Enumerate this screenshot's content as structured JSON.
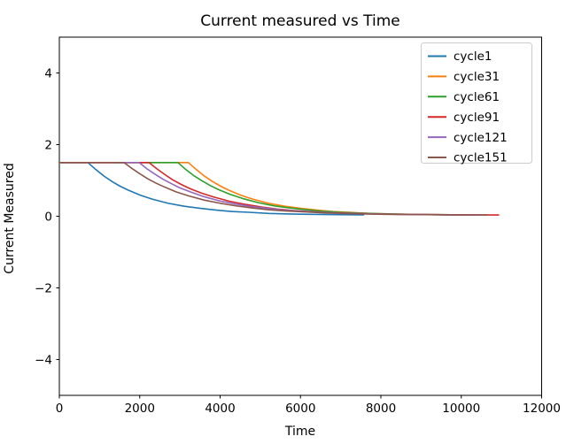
{
  "figure": {
    "background": "#ffffff"
  },
  "chart_data": {
    "type": "line",
    "title": "Current measured vs Time",
    "xlabel": "Time",
    "ylabel": "Current Measured",
    "xlim": [
      0,
      12000
    ],
    "ylim": [
      -5,
      5
    ],
    "x_ticks": [
      0,
      2000,
      4000,
      6000,
      8000,
      10000,
      12000
    ],
    "y_ticks": [
      -4,
      -2,
      0,
      2,
      4
    ],
    "grid": false,
    "plateau_value": 1.5,
    "axis_color": "#000000",
    "legend": {
      "position": "upper right",
      "border_color": "#cccccc",
      "background": "#ffffff",
      "entries": [
        "cycle1",
        "cycle31",
        "cycle61",
        "cycle91",
        "cycle121",
        "cycle151"
      ]
    },
    "series": [
      {
        "name": "cycle1",
        "color": "#1f77b4",
        "points": [
          [
            0,
            1.5
          ],
          [
            710,
            1.5
          ],
          [
            910,
            1.3
          ],
          [
            1110,
            1.12
          ],
          [
            1310,
            0.97
          ],
          [
            1510,
            0.84
          ],
          [
            1710,
            0.73
          ],
          [
            2010,
            0.59
          ],
          [
            2310,
            0.48
          ],
          [
            2710,
            0.36
          ],
          [
            3110,
            0.28
          ],
          [
            3510,
            0.22
          ],
          [
            3910,
            0.17
          ],
          [
            4310,
            0.13
          ],
          [
            4710,
            0.11
          ],
          [
            5210,
            0.08
          ],
          [
            5710,
            0.065
          ],
          [
            6210,
            0.055
          ],
          [
            6710,
            0.048
          ],
          [
            7210,
            0.042
          ],
          [
            7570,
            0.04
          ]
        ]
      },
      {
        "name": "cycle31",
        "color": "#ff7f0e",
        "points": [
          [
            0,
            1.5
          ],
          [
            3210,
            1.5
          ],
          [
            3410,
            1.3
          ],
          [
            3610,
            1.12
          ],
          [
            3810,
            0.97
          ],
          [
            4010,
            0.84
          ],
          [
            4210,
            0.73
          ],
          [
            4510,
            0.59
          ],
          [
            4810,
            0.48
          ],
          [
            5210,
            0.36
          ],
          [
            5610,
            0.28
          ],
          [
            6010,
            0.22
          ],
          [
            6410,
            0.17
          ],
          [
            6810,
            0.13
          ],
          [
            7210,
            0.11
          ],
          [
            7710,
            0.08
          ],
          [
            8210,
            0.065
          ],
          [
            8710,
            0.055
          ],
          [
            9210,
            0.048
          ],
          [
            9710,
            0.042
          ],
          [
            10260,
            0.038
          ]
        ]
      },
      {
        "name": "cycle61",
        "color": "#2ca02c",
        "points": [
          [
            0,
            1.5
          ],
          [
            2950,
            1.5
          ],
          [
            3150,
            1.3
          ],
          [
            3350,
            1.13
          ],
          [
            3550,
            0.99
          ],
          [
            3750,
            0.86
          ],
          [
            3950,
            0.75
          ],
          [
            4250,
            0.61
          ],
          [
            4550,
            0.5
          ],
          [
            4950,
            0.38
          ],
          [
            5350,
            0.29
          ],
          [
            5750,
            0.23
          ],
          [
            6150,
            0.18
          ],
          [
            6550,
            0.14
          ],
          [
            6950,
            0.11
          ],
          [
            7450,
            0.09
          ],
          [
            7950,
            0.072
          ],
          [
            8450,
            0.059
          ],
          [
            8950,
            0.05
          ],
          [
            9450,
            0.044
          ],
          [
            10060,
            0.04
          ]
        ]
      },
      {
        "name": "cycle91",
        "color": "#d62728",
        "points": [
          [
            0,
            1.5
          ],
          [
            2230,
            1.5
          ],
          [
            2430,
            1.32
          ],
          [
            2630,
            1.16
          ],
          [
            2830,
            1.01
          ],
          [
            3030,
            0.89
          ],
          [
            3230,
            0.78
          ],
          [
            3530,
            0.65
          ],
          [
            3830,
            0.54
          ],
          [
            4230,
            0.42
          ],
          [
            4630,
            0.33
          ],
          [
            5030,
            0.26
          ],
          [
            5430,
            0.2
          ],
          [
            5830,
            0.16
          ],
          [
            6230,
            0.13
          ],
          [
            6730,
            0.1
          ],
          [
            7230,
            0.082
          ],
          [
            7730,
            0.068
          ],
          [
            8230,
            0.057
          ],
          [
            8730,
            0.049
          ],
          [
            9230,
            0.044
          ],
          [
            9730,
            0.042
          ],
          [
            10230,
            0.04
          ],
          [
            10930,
            0.035
          ]
        ]
      },
      {
        "name": "cycle121",
        "color": "#9467bd",
        "points": [
          [
            0,
            1.5
          ],
          [
            1985,
            1.5
          ],
          [
            2185,
            1.32
          ],
          [
            2385,
            1.17
          ],
          [
            2585,
            1.03
          ],
          [
            2785,
            0.91
          ],
          [
            2985,
            0.8
          ],
          [
            3285,
            0.67
          ],
          [
            3585,
            0.55
          ],
          [
            3985,
            0.43
          ],
          [
            4385,
            0.34
          ],
          [
            4785,
            0.27
          ],
          [
            5185,
            0.22
          ],
          [
            5585,
            0.17
          ],
          [
            5985,
            0.14
          ],
          [
            6485,
            0.11
          ],
          [
            6985,
            0.09
          ],
          [
            7485,
            0.072
          ],
          [
            7985,
            0.06
          ],
          [
            8485,
            0.052
          ],
          [
            8985,
            0.046
          ],
          [
            9485,
            0.041
          ],
          [
            9985,
            0.038
          ],
          [
            10500,
            0.036
          ]
        ]
      },
      {
        "name": "cycle151",
        "color": "#8c564b",
        "points": [
          [
            0,
            1.5
          ],
          [
            1610,
            1.5
          ],
          [
            1810,
            1.33
          ],
          [
            2010,
            1.18
          ],
          [
            2210,
            1.04
          ],
          [
            2410,
            0.92
          ],
          [
            2610,
            0.82
          ],
          [
            2910,
            0.68
          ],
          [
            3210,
            0.57
          ],
          [
            3610,
            0.45
          ],
          [
            4010,
            0.36
          ],
          [
            4410,
            0.29
          ],
          [
            4810,
            0.23
          ],
          [
            5210,
            0.18
          ],
          [
            5610,
            0.15
          ],
          [
            6110,
            0.12
          ],
          [
            6610,
            0.095
          ],
          [
            7110,
            0.077
          ],
          [
            7610,
            0.065
          ],
          [
            8110,
            0.055
          ],
          [
            8610,
            0.049
          ],
          [
            9110,
            0.044
          ],
          [
            9610,
            0.04
          ],
          [
            10110,
            0.037
          ],
          [
            10650,
            0.035
          ]
        ]
      }
    ]
  }
}
